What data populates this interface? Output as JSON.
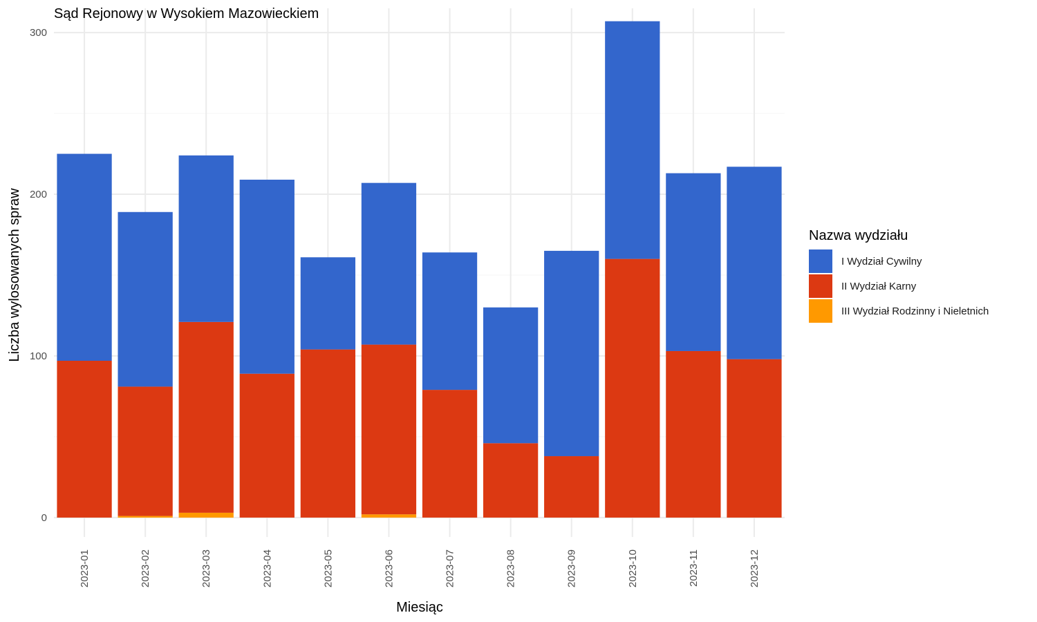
{
  "chart_data": {
    "type": "bar",
    "stacked": true,
    "title": "Sąd Rejonowy w Wysokiem Mazowieckiem",
    "xlabel": "Miesiąc",
    "ylabel": "Liczba wylosowanych spraw",
    "categories": [
      "2023-01",
      "2023-02",
      "2023-03",
      "2023-04",
      "2023-05",
      "2023-06",
      "2023-07",
      "2023-08",
      "2023-09",
      "2023-10",
      "2023-11",
      "2023-12"
    ],
    "series": [
      {
        "name": "III Wydział Rodzinny i Nieletnich",
        "color": "#ff9900",
        "values": [
          0,
          1,
          3,
          0,
          0,
          2,
          0,
          0,
          0,
          0,
          0,
          0
        ]
      },
      {
        "name": "II Wydział Karny",
        "color": "#dc3912",
        "values": [
          97,
          80,
          118,
          89,
          104,
          105,
          79,
          46,
          38,
          160,
          103,
          98
        ]
      },
      {
        "name": "I Wydział Cywilny",
        "color": "#3366cc",
        "values": [
          128,
          108,
          103,
          120,
          57,
          100,
          85,
          84,
          127,
          147,
          110,
          119
        ]
      }
    ],
    "yticks": [
      0,
      100,
      200,
      300
    ],
    "ylim": [
      -12,
      315
    ],
    "grid": true,
    "legend": {
      "title": "Nazwa wydziału",
      "position": "right",
      "items": [
        {
          "label": "I Wydział Cywilny",
          "color": "#3366cc"
        },
        {
          "label": "II Wydział Karny",
          "color": "#dc3912"
        },
        {
          "label": "III Wydział Rodzinny i Nieletnich",
          "color": "#ff9900"
        }
      ]
    }
  }
}
